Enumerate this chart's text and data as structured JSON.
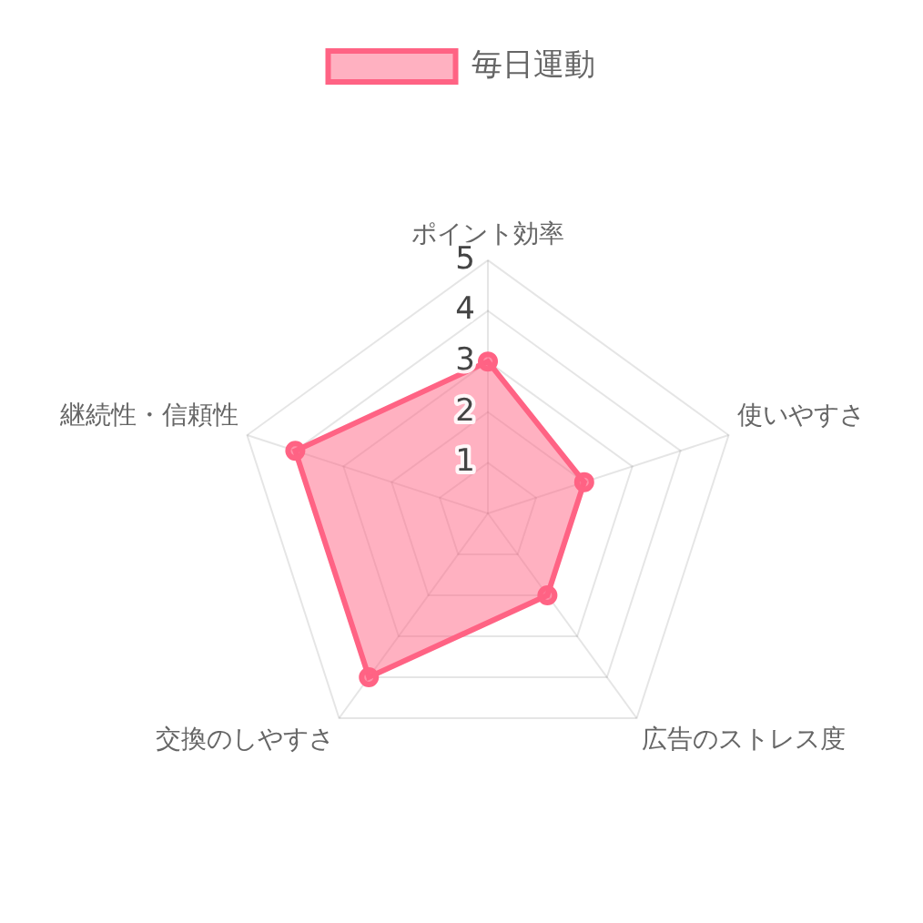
{
  "chart_data": {
    "type": "radar",
    "categories": [
      "ポイント効率",
      "使いやすさ",
      "広告のストレス度",
      "交換のしやすさ",
      "継続性・信頼性"
    ],
    "series": [
      {
        "name": "毎日運動",
        "color": "#ff6384",
        "values": [
          3,
          2,
          2,
          4,
          4
        ]
      }
    ],
    "ylim": [
      0,
      5
    ],
    "yticks": [
      1,
      2,
      3,
      4,
      5
    ],
    "grid": true,
    "legend": "top",
    "marker": "circle"
  }
}
